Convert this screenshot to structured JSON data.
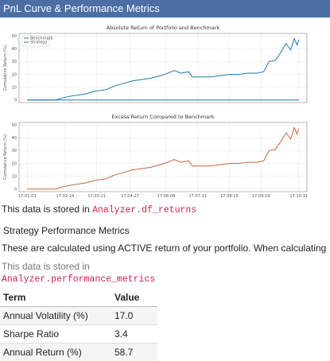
{
  "header": {
    "title": "PnL Curve & Performance Metrics"
  },
  "chart_data": [
    {
      "type": "line",
      "title": "Absolute Return of Portfolio and Benchmark",
      "xlabel": "",
      "ylabel": "Cumulative Return (%)",
      "ylim": [
        -2,
        52
      ],
      "yticks": [
        0,
        10,
        20,
        30,
        40,
        50
      ],
      "grid": true,
      "legend": "top-left",
      "series": [
        {
          "name": "Benchmark",
          "color": "#1f77b4",
          "points": [
            [
              "2017-01-03",
              0
            ],
            [
              "2017-10-31",
              0
            ]
          ]
        },
        {
          "name": "Strategy",
          "color": "#1f77b4",
          "points": [
            [
              "2017-01-03",
              0
            ],
            [
              "2017-02-03",
              0
            ],
            [
              "2017-02-13",
              2
            ],
            [
              "2017-02-20",
              3
            ],
            [
              "2017-03-01",
              4
            ],
            [
              "2017-03-10",
              5
            ],
            [
              "2017-03-20",
              7
            ],
            [
              "2017-03-31",
              8
            ],
            [
              "2017-04-10",
              11
            ],
            [
              "2017-04-20",
              13
            ],
            [
              "2017-04-30",
              15
            ],
            [
              "2017-05-10",
              16
            ],
            [
              "2017-05-20",
              17
            ],
            [
              "2017-05-31",
              19
            ],
            [
              "2017-06-08",
              21
            ],
            [
              "2017-06-15",
              23
            ],
            [
              "2017-06-22",
              21
            ],
            [
              "2017-07-01",
              22
            ],
            [
              "2017-07-05",
              18
            ],
            [
              "2017-07-15",
              18
            ],
            [
              "2017-07-25",
              18
            ],
            [
              "2017-08-05",
              19
            ],
            [
              "2017-08-15",
              20
            ],
            [
              "2017-08-25",
              20
            ],
            [
              "2017-09-05",
              21
            ],
            [
              "2017-09-15",
              21
            ],
            [
              "2017-09-22",
              22
            ],
            [
              "2017-09-28",
              30
            ],
            [
              "2017-10-05",
              31
            ],
            [
              "2017-10-10",
              36
            ],
            [
              "2017-10-17",
              44
            ],
            [
              "2017-10-22",
              39
            ],
            [
              "2017-10-26",
              48
            ],
            [
              "2017-10-29",
              43
            ],
            [
              "2017-10-31",
              47
            ]
          ]
        }
      ]
    },
    {
      "type": "line",
      "title": "Excess Return Compared to Benchmark",
      "xlabel": "",
      "ylabel": "Cumulative Return (%)",
      "ylim": [
        -2,
        52
      ],
      "yticks": [
        0,
        10,
        20,
        30,
        40,
        50
      ],
      "xticks": [
        "17-01-03",
        "17-02-14",
        "17-03-21",
        "17-04-27",
        "17-06-06",
        "17-07-11",
        "17-08-15",
        "17-09-19",
        "17-10-31"
      ],
      "grid": true,
      "legend": "none",
      "series": [
        {
          "color": "#c8643c",
          "points": [
            [
              "2017-01-03",
              0
            ],
            [
              "2017-02-03",
              0
            ],
            [
              "2017-02-13",
              2
            ],
            [
              "2017-02-20",
              3
            ],
            [
              "2017-03-01",
              4
            ],
            [
              "2017-03-10",
              5
            ],
            [
              "2017-03-20",
              7
            ],
            [
              "2017-03-31",
              8
            ],
            [
              "2017-04-10",
              11
            ],
            [
              "2017-04-20",
              13
            ],
            [
              "2017-04-30",
              15
            ],
            [
              "2017-05-10",
              16
            ],
            [
              "2017-05-20",
              17
            ],
            [
              "2017-05-31",
              19
            ],
            [
              "2017-06-08",
              21
            ],
            [
              "2017-06-15",
              23
            ],
            [
              "2017-06-22",
              21
            ],
            [
              "2017-07-01",
              22
            ],
            [
              "2017-07-05",
              18
            ],
            [
              "2017-07-15",
              18
            ],
            [
              "2017-07-25",
              18
            ],
            [
              "2017-08-05",
              19
            ],
            [
              "2017-08-15",
              20
            ],
            [
              "2017-08-25",
              20
            ],
            [
              "2017-09-05",
              21
            ],
            [
              "2017-09-15",
              21
            ],
            [
              "2017-09-22",
              22
            ],
            [
              "2017-09-28",
              30
            ],
            [
              "2017-10-05",
              31
            ],
            [
              "2017-10-10",
              36
            ],
            [
              "2017-10-17",
              44
            ],
            [
              "2017-10-22",
              39
            ],
            [
              "2017-10-26",
              48
            ],
            [
              "2017-10-29",
              43
            ],
            [
              "2017-10-31",
              47
            ]
          ]
        }
      ]
    }
  ],
  "returns_note": {
    "prefix": "This data is stored in ",
    "code": "Analyzer.df_returns"
  },
  "performance": {
    "title": "Strategy Performance Metrics",
    "description": "These are calculated using ACTIVE return of your portfolio. When calculating",
    "stored_label": "This data is stored in",
    "stored_code": "Analyzer.performance_metrics"
  },
  "metrics_table": {
    "headers": [
      "Term",
      "Value"
    ],
    "rows": [
      [
        "Annual Volatility (%)",
        "17.0"
      ],
      [
        "Sharpe Ratio",
        "3.4"
      ],
      [
        "Annual Return (%)",
        "58.7"
      ]
    ]
  }
}
